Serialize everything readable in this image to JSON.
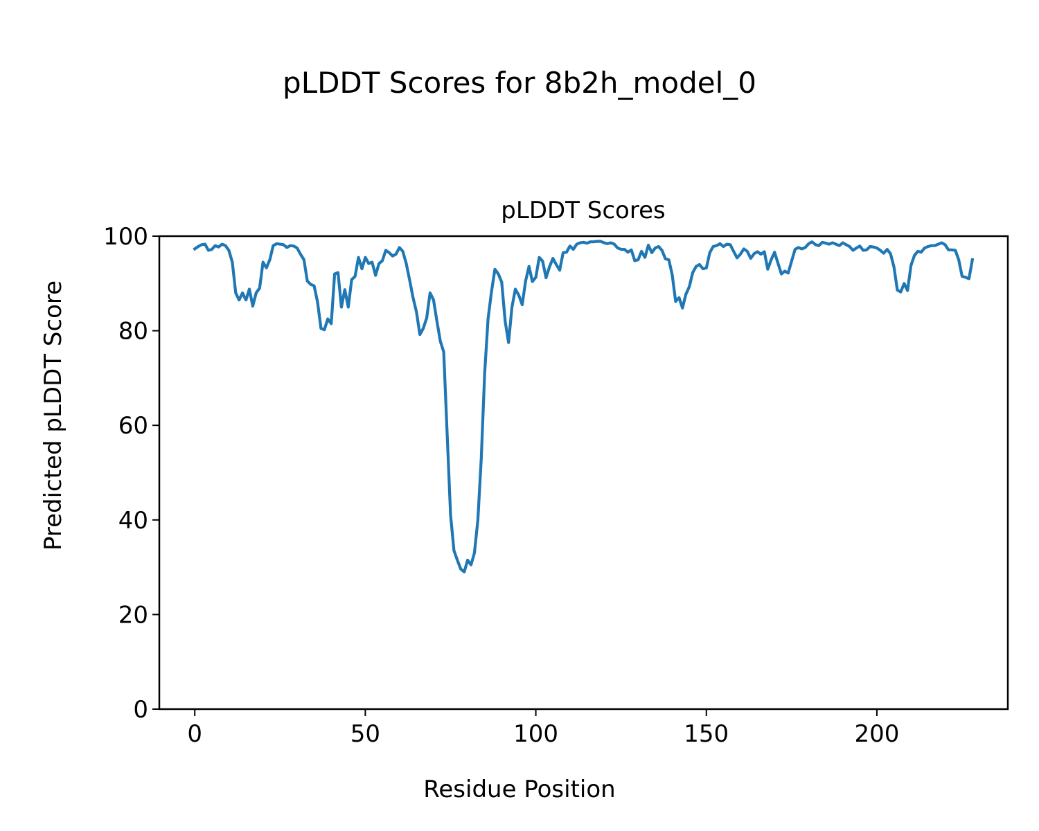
{
  "figure_title": "pLDDT Scores for 8b2h_model_0",
  "chart_data": {
    "type": "line",
    "title": "pLDDT Scores",
    "xlabel": "Residue Position",
    "ylabel": "Predicted pLDDT Score",
    "xlim": [
      -10.4,
      238.4
    ],
    "ylim": [
      0,
      100
    ],
    "xticks": [
      0,
      50,
      100,
      150,
      200
    ],
    "yticks": [
      0,
      20,
      40,
      60,
      80,
      100
    ],
    "grid": false,
    "series": [
      {
        "name": "pLDDT",
        "color": "#1f77b4",
        "values": [
          97.3,
          97.8,
          98.2,
          98.3,
          97,
          97.2,
          98,
          97.7,
          98.3,
          98,
          97,
          94.5,
          88,
          86.5,
          88,
          86.5,
          88.8,
          85.2,
          88,
          89,
          94.5,
          93.3,
          95,
          98,
          98.4,
          98.3,
          98.2,
          97.6,
          98,
          97.9,
          97.5,
          96.2,
          95,
          90.5,
          89.8,
          89.5,
          86,
          80.5,
          80.2,
          82.5,
          81.5,
          92,
          92.3,
          85,
          88.7,
          85,
          90.8,
          91.5,
          95.5,
          93.1,
          95.5,
          94.2,
          94.5,
          91.7,
          94.2,
          94.8,
          97,
          96.5,
          95.8,
          96.2,
          97.6,
          96.8,
          94.2,
          90.7,
          87,
          84,
          79.2,
          80.5,
          82.7,
          88,
          86.5,
          82,
          77.8,
          75.5,
          58,
          41,
          33.5,
          31.5,
          29.6,
          29,
          31.5,
          30.5,
          33,
          40,
          53,
          71,
          82.5,
          88.3,
          93,
          92,
          90.3,
          82,
          77.5,
          85,
          88.8,
          87.5,
          85.5,
          90.5,
          93.6,
          90.4,
          91.3,
          95.5,
          94.7,
          91.2,
          93.5,
          95.3,
          94,
          92.8,
          96.5,
          96.6,
          97.9,
          97.2,
          98.3,
          98.6,
          98.7,
          98.5,
          98.8,
          98.8,
          98.9,
          98.9,
          98.6,
          98.4,
          98.6,
          98.3,
          97.5,
          97.2,
          97.2,
          96.6,
          97.1,
          94.8,
          95,
          96.8,
          95.5,
          98.1,
          96.5,
          97.5,
          97.8,
          97,
          95.2,
          95,
          91.8,
          86.2,
          87,
          84.8,
          87.7,
          89.3,
          92.3,
          93.6,
          94,
          93.1,
          93.3,
          96.5,
          97.8,
          98,
          98.4,
          97.8,
          98.3,
          98.2,
          96.8,
          95.4,
          96.2,
          97.3,
          96.8,
          95.3,
          96.3,
          96.7,
          96.2,
          96.7,
          93,
          95,
          96.6,
          94.3,
          92,
          92.6,
          92.2,
          94.7,
          97.2,
          97.6,
          97.3,
          97.6,
          98.4,
          98.8,
          98.2,
          98,
          98.7,
          98.5,
          98.3,
          98.6,
          98.3,
          98,
          98.6,
          98.2,
          97.8,
          97,
          97.5,
          97.9,
          97,
          97.1,
          97.8,
          97.7,
          97.5,
          97,
          96.4,
          97.2,
          96.3,
          93.5,
          88.6,
          88.2,
          90,
          88.5,
          93.8,
          95.9,
          96.8,
          96.6,
          97.5,
          97.8,
          98,
          98,
          98.3,
          98.6,
          98.2,
          97.1,
          97.1,
          97,
          95,
          91.5,
          91.3,
          91,
          95
        ]
      }
    ]
  }
}
